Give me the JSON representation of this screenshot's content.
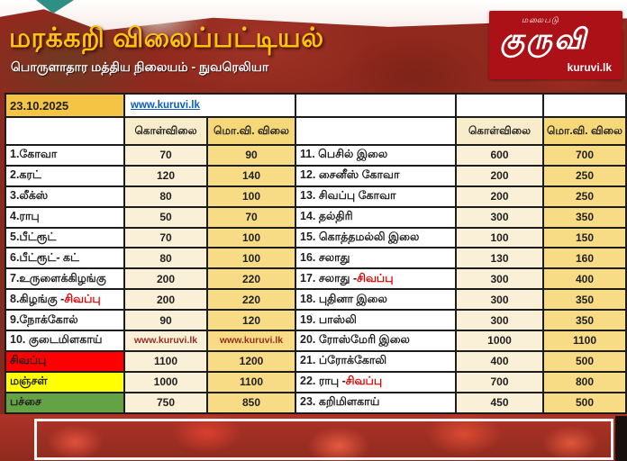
{
  "header": {
    "title": "மரக்கறி விலைப்பட்டியல்",
    "subtitle": "பொருளாதார மத்திய நிலையம் - நுவரெலியா",
    "logo": {
      "tagline": "மலைபடு",
      "brand": "குருவி",
      "domain": "kuruvi.lk"
    }
  },
  "date": "23.10.2025",
  "website": "www.kuruvi.lk",
  "columns": {
    "buy": "கொள்விலை",
    "retail": "மொ.வி. விலை"
  },
  "colors": {
    "accent_yellow": "#f6c445",
    "buy_cell": "#f9f0d7",
    "retail_cell": "#f8dc85",
    "red_row": "#ff0000",
    "yellow_row": "#ffff00",
    "green_row": "#63a245",
    "logo_red": "#ac1117",
    "title_yellow": "#ffc20e",
    "link_blue": "#0b5bc5"
  },
  "chart_data": {
    "type": "table",
    "title": "மரக்கறி விலைப்பட்டியல் — 23.10.2025",
    "columns": [
      "item",
      "கொள்விலை",
      "மொ.வி. விலை"
    ],
    "left_rows": [
      {
        "name": "1.கோவா",
        "buy": "70",
        "retail": "90"
      },
      {
        "name": "2.கரட்",
        "buy": "120",
        "retail": "140"
      },
      {
        "name": "3.லீக்ஸ்",
        "buy": "80",
        "retail": "100"
      },
      {
        "name": "4.ராபு",
        "buy": "50",
        "retail": "70"
      },
      {
        "name": "5.பீட்ரூட்",
        "buy": "70",
        "retail": "100"
      },
      {
        "name": "6.பீட்ரூட்- கட்",
        "buy": "80",
        "retail": "100"
      },
      {
        "name": "7.உருளைக்கிழங்கு",
        "buy": "200",
        "retail": "220"
      },
      {
        "name": "8.கிழங்கு - ",
        "name_red": "சிவப்பு",
        "buy": "200",
        "retail": "220"
      },
      {
        "name": "9.நோக்கோல்",
        "buy": "90",
        "retail": "120"
      },
      {
        "name": "10. குடைமிளகாய்",
        "buy": "www.kuruvi.lk",
        "retail": "www.kuruvi.lk",
        "link_cells": true
      },
      {
        "name": "சிவப்பு",
        "row_color": "red_row",
        "buy": "1100",
        "retail": "1200"
      },
      {
        "name": "மஞ்சள்",
        "row_color": "yellow_row",
        "buy": "1000",
        "retail": "1100"
      },
      {
        "name": "பச்சை",
        "row_color": "green_row",
        "buy": "750",
        "retail": "850"
      }
    ],
    "right_rows": [
      {
        "name": "11. பெசில் இலை",
        "buy": "600",
        "retail": "700"
      },
      {
        "name": "12. சைனீஸ் கோவா",
        "buy": "200",
        "retail": "250"
      },
      {
        "name": "13. சிவப்பு கோவா",
        "buy": "200",
        "retail": "250"
      },
      {
        "name": "14. தல்திரி",
        "buy": "300",
        "retail": "350"
      },
      {
        "name": "15. கொத்தமல்லி இலை",
        "buy": "100",
        "retail": "150"
      },
      {
        "name": "16. சலாது",
        "buy": "130",
        "retail": "160"
      },
      {
        "name": "17. சலாது - ",
        "name_red": "சிவப்பு",
        "buy": "300",
        "retail": "400"
      },
      {
        "name": "18. புதினா இலை",
        "buy": "300",
        "retail": "350"
      },
      {
        "name": "19. பாஸ்லி",
        "buy": "300",
        "retail": "350"
      },
      {
        "name": "20. ரோஸ்மேரி இலை",
        "buy": "1000",
        "retail": "1100"
      },
      {
        "name": "21. ப்ரோக்கோலி",
        "buy": "400",
        "retail": "500"
      },
      {
        "name": "22. ராபு - ",
        "name_red": "சிவப்பு",
        "buy": "700",
        "retail": "800"
      },
      {
        "name": "23. கறிமிளகாய்",
        "buy": "450",
        "retail": "500"
      }
    ]
  }
}
